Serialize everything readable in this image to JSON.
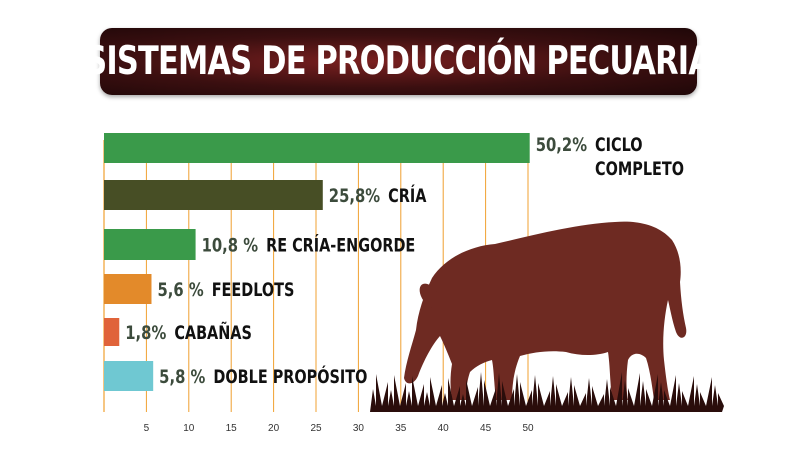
{
  "title": "SISTEMAS DE PRODUCCIÓN PECUARIA",
  "colors": {
    "banner_dark": "#2a0b0c",
    "banner_red": "#7a2020",
    "grid": "#f0a030",
    "cow": "#6e2a22",
    "grass": "#2a0d0b"
  },
  "icons": [
    "cow-silhouette-icon",
    "grass-icon"
  ],
  "chart_data": {
    "type": "bar",
    "orientation": "horizontal",
    "xlim": [
      0,
      50
    ],
    "x_ticks": [
      "5",
      "10",
      "15",
      "20",
      "25",
      "30",
      "35",
      "40",
      "45",
      "50"
    ],
    "grid": true,
    "bars": [
      {
        "value": 50.2,
        "value_label": "50,2%",
        "category": [
          "CICLO",
          "COMPLETO"
        ],
        "color": "#3a9a4a"
      },
      {
        "value": 25.8,
        "value_label": "25,8%",
        "category": [
          "CRÍA"
        ],
        "color": "#474e25"
      },
      {
        "value": 10.8,
        "value_label": "10,8 %",
        "category": [
          "RE CRÍA-ENGORDE"
        ],
        "color": "#3a9a4a"
      },
      {
        "value": 5.6,
        "value_label": "5,6 %",
        "category": [
          "FEEDLOTS"
        ],
        "color": "#e38a2a"
      },
      {
        "value": 1.8,
        "value_label": "1,8%",
        "category": [
          "CABAÑAS"
        ],
        "color": "#e0633a"
      },
      {
        "value": 5.8,
        "value_label": "5,8 %",
        "category": [
          "DOBLE PROPÓSITO"
        ],
        "color": "#6fc8d2"
      }
    ]
  }
}
